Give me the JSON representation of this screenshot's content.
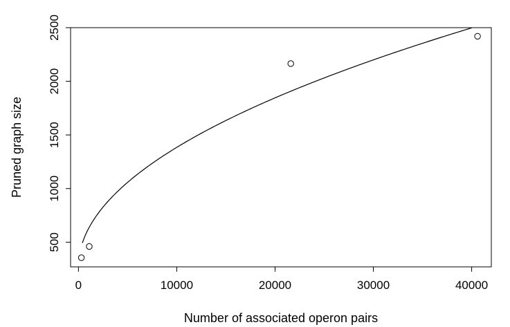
{
  "chart_data": {
    "type": "scatter",
    "title": "",
    "xlabel": "Number of associated operon pairs",
    "ylabel": "Pruned graph size",
    "xlim": [
      -800,
      42000
    ],
    "ylim": [
      270,
      2500
    ],
    "grid": false,
    "legend": "none",
    "x_ticks": [
      0,
      10000,
      20000,
      30000,
      40000
    ],
    "x_tick_labels": [
      "0",
      "10000",
      "20000",
      "30000",
      "40000"
    ],
    "y_ticks": [
      500,
      1000,
      1500,
      2000,
      2500
    ],
    "y_tick_labels": [
      "500",
      "1000",
      "1500",
      "2000",
      "2500"
    ],
    "points": [
      {
        "x": 300,
        "y": 355
      },
      {
        "x": 1100,
        "y": 460
      },
      {
        "x": 21600,
        "y": 2165
      },
      {
        "x": 40600,
        "y": 2420
      }
    ],
    "fit_curve": {
      "model": "y = a + b*sqrt(x)",
      "a": 270,
      "b": 11.14,
      "x_range": [
        400,
        40000
      ]
    },
    "colors": {
      "axes": "#000000",
      "points": "#000000",
      "curve": "#000000",
      "background": "#ffffff"
    }
  }
}
